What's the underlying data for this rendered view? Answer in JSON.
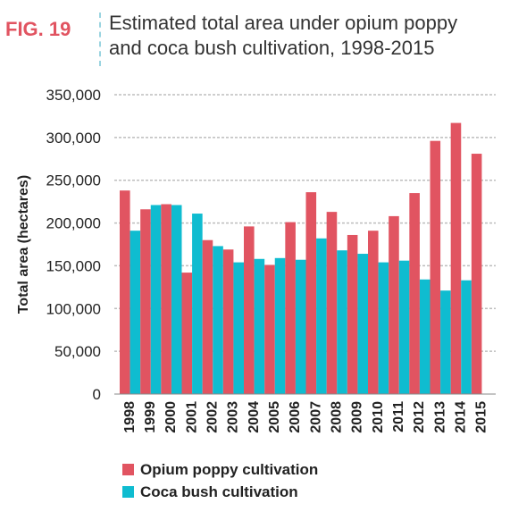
{
  "figure": {
    "label": "FIG. 19",
    "title_line1": "Estimated total area under opium poppy",
    "title_line2": "and coca bush cultivation, 1998-2015"
  },
  "colors": {
    "opium": "#e15461",
    "coca": "#0fbcd0",
    "grid": "#bdbdbd",
    "label_red": "#e15461"
  },
  "chart_data": {
    "type": "bar",
    "ylabel": "Total area (hectares)",
    "xlabel": "",
    "ylim": [
      0,
      350000
    ],
    "yticks": [
      0,
      50000,
      100000,
      150000,
      200000,
      250000,
      300000,
      350000
    ],
    "ytick_labels": [
      "0",
      "50,000",
      "100,000",
      "150,000",
      "200,000",
      "250,000",
      "300,000",
      "350,000"
    ],
    "grid": "horizontal",
    "legend_position": "bottom",
    "categories": [
      "1998",
      "1999",
      "2000",
      "2001",
      "2002",
      "2003",
      "2004",
      "2005",
      "2006",
      "2007",
      "2008",
      "2009",
      "2010",
      "2011",
      "2012",
      "2013",
      "2014",
      "2015"
    ],
    "series": [
      {
        "name": "Opium poppy cultivation",
        "color": "#e15461",
        "values": [
          238000,
          216000,
          222000,
          142000,
          180000,
          169000,
          196000,
          151000,
          201000,
          236000,
          213000,
          186000,
          191000,
          208000,
          235000,
          296000,
          317000,
          281000
        ]
      },
      {
        "name": "Coca bush cultivation",
        "color": "#0fbcd0",
        "values": [
          191000,
          221000,
          221000,
          211000,
          173000,
          154000,
          158000,
          159000,
          157000,
          182000,
          168000,
          164000,
          154000,
          156000,
          134000,
          121000,
          133000,
          null
        ]
      }
    ]
  }
}
